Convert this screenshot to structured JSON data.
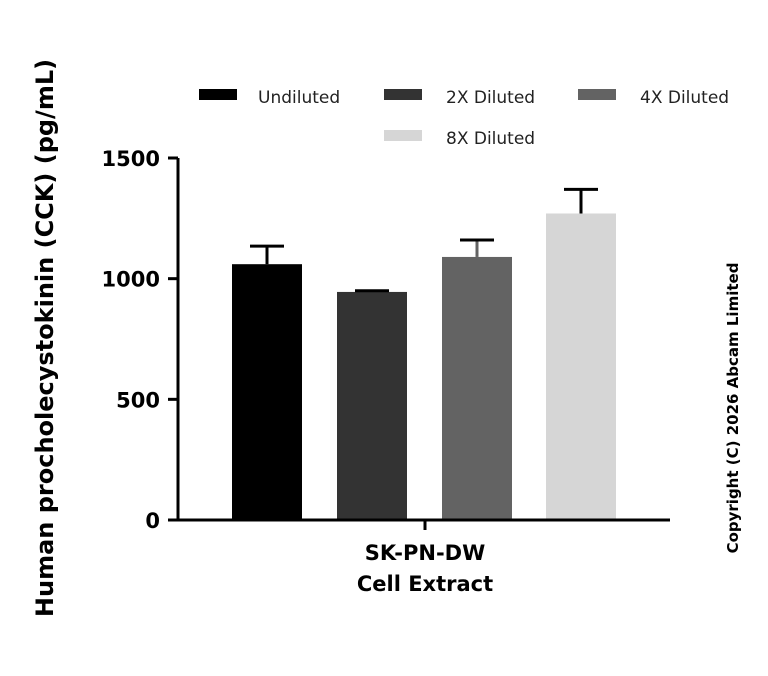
{
  "chart_data": {
    "type": "bar",
    "ylabel": "Human procholecystokinin (CCK) (pg/mL)",
    "xlabel_lines": [
      "SK-PN-DW",
      "Cell Extract"
    ],
    "categories": [
      "SK-PN-DW Cell Extract"
    ],
    "ylim": [
      0,
      1500
    ],
    "yticks": [
      0,
      500,
      1000,
      1500
    ],
    "grid": false,
    "legend_position": "top",
    "series": [
      {
        "name": "Undiluted",
        "value": 1060,
        "error": 75,
        "color": "#000000"
      },
      {
        "name": "2X Diluted",
        "value": 945,
        "error": 5,
        "color": "#333333"
      },
      {
        "name": "4X Diluted",
        "value": 1090,
        "error": 70,
        "color": "#636363"
      },
      {
        "name": "8X Diluted",
        "value": 1270,
        "error": 100,
        "color": "#d6d6d6"
      }
    ]
  },
  "copyright": "Copyright (C) 2026 Abcam Limited"
}
